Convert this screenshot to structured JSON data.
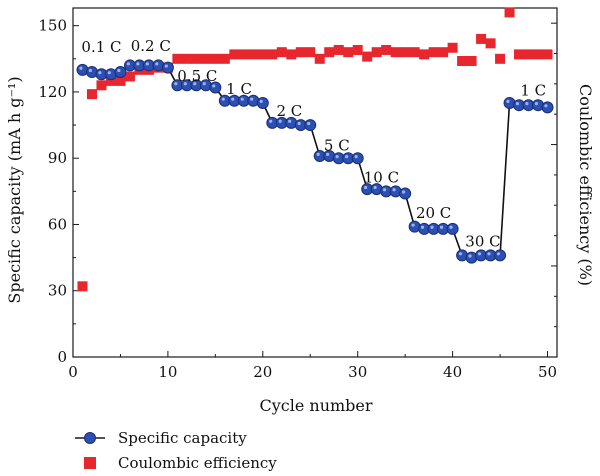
{
  "chart_data": {
    "type": "scatter",
    "xlabel": "Cycle number",
    "ylabel_left": "Specific capacity (mA h g⁻¹)",
    "ylabel_right": "Coulombic efficiency (%)",
    "xlim": [
      0,
      51
    ],
    "ylim": [
      0,
      158
    ],
    "xticks": [
      0,
      10,
      20,
      30,
      40,
      50
    ],
    "yticks": [
      0,
      30,
      60,
      90,
      120,
      150
    ],
    "grid": false,
    "legend_position": "bottom",
    "series": [
      {
        "name": "Specific capacity",
        "marker": "circle",
        "line": true,
        "color": "#2b4fb5",
        "x": [
          1,
          2,
          3,
          4,
          5,
          6,
          7,
          8,
          9,
          10,
          11,
          12,
          13,
          14,
          15,
          16,
          17,
          18,
          19,
          20,
          21,
          22,
          23,
          24,
          25,
          26,
          27,
          28,
          29,
          30,
          31,
          32,
          33,
          34,
          35,
          36,
          37,
          38,
          39,
          40,
          41,
          42,
          43,
          44,
          45,
          46,
          47,
          48,
          49,
          50
        ],
        "y": [
          130,
          129,
          128,
          128,
          129,
          132,
          132,
          132,
          132,
          131,
          123,
          123,
          123,
          123,
          122,
          116,
          116,
          116,
          116,
          115,
          106,
          106,
          106,
          105,
          105,
          91,
          91,
          90,
          90,
          90,
          76,
          76,
          75,
          75,
          74,
          59,
          58,
          58,
          58,
          58,
          46,
          45,
          46,
          46,
          46,
          115,
          114,
          114,
          114,
          113
        ]
      },
      {
        "name": "Coulombic efficiency",
        "marker": "square",
        "line": false,
        "color": "#e8262e",
        "x": [
          1,
          2,
          3,
          4,
          5,
          6,
          7,
          8,
          9,
          10,
          11,
          12,
          13,
          14,
          15,
          16,
          17,
          18,
          19,
          20,
          21,
          22,
          23,
          24,
          25,
          26,
          27,
          28,
          29,
          30,
          31,
          32,
          33,
          34,
          35,
          36,
          37,
          38,
          39,
          40,
          41,
          42,
          43,
          44,
          45,
          46,
          47,
          48,
          49,
          50
        ],
        "y": [
          32,
          119,
          123,
          125,
          125,
          127,
          130,
          130,
          131,
          131,
          135,
          135,
          135,
          135,
          135,
          135,
          137,
          137,
          137,
          137,
          137,
          138,
          137,
          138,
          138,
          135,
          138,
          139,
          138,
          139,
          136,
          138,
          139,
          138,
          138,
          138,
          137,
          138,
          138,
          140,
          134,
          134,
          144,
          142,
          135,
          156,
          137,
          137,
          137,
          137
        ]
      }
    ],
    "annotations": [
      {
        "text": "0.1 C",
        "x": 3.0,
        "y": 138
      },
      {
        "text": "0.2 C",
        "x": 8.2,
        "y": 138.5
      },
      {
        "text": "0.5 C",
        "x": 13.1,
        "y": 125
      },
      {
        "text": "1 C",
        "x": 17.5,
        "y": 119
      },
      {
        "text": "2 C",
        "x": 22.8,
        "y": 109
      },
      {
        "text": "5 C",
        "x": 27.8,
        "y": 93.5
      },
      {
        "text": "10 C",
        "x": 32.5,
        "y": 79
      },
      {
        "text": "20 C",
        "x": 38.0,
        "y": 63
      },
      {
        "text": "30 C",
        "x": 43.2,
        "y": 50
      },
      {
        "text": "1 C",
        "x": 48.5,
        "y": 118.5
      }
    ]
  }
}
